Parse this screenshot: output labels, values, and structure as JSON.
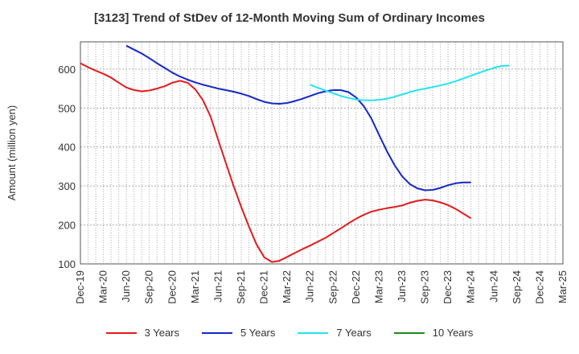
{
  "chart_data": {
    "type": "line",
    "title": "[3123]  Trend of StDev of 12-Month Moving Sum of Ordinary Incomes",
    "xlabel": "",
    "ylabel": "Amount (million yen)",
    "ylim": [
      100,
      670
    ],
    "yticks": [
      100,
      200,
      300,
      400,
      500,
      600
    ],
    "x_tick_labels": [
      "Dec-19",
      "Mar-20",
      "Jun-20",
      "Sep-20",
      "Dec-20",
      "Mar-21",
      "Jun-21",
      "Sep-21",
      "Dec-21",
      "Mar-22",
      "Jun-22",
      "Sep-22",
      "Dec-22",
      "Mar-23",
      "Jun-23",
      "Sep-23",
      "Dec-23",
      "Mar-24",
      "Jun-24",
      "Sep-24",
      "Dec-24",
      "Mar-25"
    ],
    "x_unit": "month index from Dec-19",
    "grid": true,
    "legend_position": "bottom",
    "series": [
      {
        "name": "3 Years",
        "color": "#e31a1c",
        "points": [
          [
            0,
            615
          ],
          [
            1,
            605
          ],
          [
            2,
            596
          ],
          [
            3,
            588
          ],
          [
            4,
            578
          ],
          [
            5,
            565
          ],
          [
            6,
            553
          ],
          [
            7,
            546
          ],
          [
            8,
            543
          ],
          [
            9,
            545
          ],
          [
            10,
            550
          ],
          [
            11,
            556
          ],
          [
            12,
            565
          ],
          [
            13,
            570
          ],
          [
            14,
            565
          ],
          [
            15,
            548
          ],
          [
            16,
            520
          ],
          [
            17,
            478
          ],
          [
            18,
            418
          ],
          [
            19,
            358
          ],
          [
            20,
            300
          ],
          [
            21,
            246
          ],
          [
            22,
            196
          ],
          [
            23,
            150
          ],
          [
            24,
            117
          ],
          [
            25,
            105
          ],
          [
            26,
            108
          ],
          [
            27,
            118
          ],
          [
            28,
            128
          ],
          [
            29,
            138
          ],
          [
            30,
            147
          ],
          [
            31,
            157
          ],
          [
            32,
            167
          ],
          [
            33,
            179
          ],
          [
            34,
            191
          ],
          [
            35,
            204
          ],
          [
            36,
            216
          ],
          [
            37,
            226
          ],
          [
            38,
            234
          ],
          [
            39,
            239
          ],
          [
            40,
            243
          ],
          [
            41,
            246
          ],
          [
            42,
            250
          ],
          [
            43,
            257
          ],
          [
            44,
            262
          ],
          [
            45,
            265
          ],
          [
            46,
            263
          ],
          [
            47,
            258
          ],
          [
            48,
            251
          ],
          [
            49,
            241
          ],
          [
            50,
            229
          ],
          [
            51,
            217
          ]
        ]
      },
      {
        "name": "5 Years",
        "color": "#1428c8",
        "points": [
          [
            6,
            660
          ],
          [
            7,
            650
          ],
          [
            8,
            640
          ],
          [
            9,
            628
          ],
          [
            10,
            615
          ],
          [
            11,
            603
          ],
          [
            12,
            591
          ],
          [
            13,
            581
          ],
          [
            14,
            573
          ],
          [
            15,
            566
          ],
          [
            16,
            560
          ],
          [
            17,
            555
          ],
          [
            18,
            550
          ],
          [
            19,
            546
          ],
          [
            20,
            542
          ],
          [
            21,
            537
          ],
          [
            22,
            531
          ],
          [
            23,
            523
          ],
          [
            24,
            516
          ],
          [
            25,
            512
          ],
          [
            26,
            511
          ],
          [
            27,
            513
          ],
          [
            28,
            518
          ],
          [
            29,
            524
          ],
          [
            30,
            531
          ],
          [
            31,
            538
          ],
          [
            32,
            543
          ],
          [
            33,
            546
          ],
          [
            34,
            546
          ],
          [
            35,
            541
          ],
          [
            36,
            527
          ],
          [
            37,
            505
          ],
          [
            38,
            473
          ],
          [
            39,
            431
          ],
          [
            40,
            390
          ],
          [
            41,
            354
          ],
          [
            42,
            325
          ],
          [
            43,
            305
          ],
          [
            44,
            294
          ],
          [
            45,
            289
          ],
          [
            46,
            290
          ],
          [
            47,
            295
          ],
          [
            48,
            302
          ],
          [
            49,
            307
          ],
          [
            50,
            309
          ],
          [
            51,
            309
          ]
        ]
      },
      {
        "name": "7 Years",
        "color": "#22e4f0",
        "points": [
          [
            30,
            560
          ],
          [
            31,
            552
          ],
          [
            32,
            545
          ],
          [
            33,
            538
          ],
          [
            34,
            531
          ],
          [
            35,
            526
          ],
          [
            36,
            522
          ],
          [
            37,
            520
          ],
          [
            38,
            520
          ],
          [
            39,
            521
          ],
          [
            40,
            524
          ],
          [
            41,
            529
          ],
          [
            42,
            535
          ],
          [
            43,
            541
          ],
          [
            44,
            546
          ],
          [
            45,
            550
          ],
          [
            46,
            554
          ],
          [
            47,
            558
          ],
          [
            48,
            563
          ],
          [
            49,
            569
          ],
          [
            50,
            576
          ],
          [
            51,
            583
          ],
          [
            52,
            590
          ],
          [
            53,
            597
          ],
          [
            54,
            603
          ],
          [
            55,
            608
          ],
          [
            56,
            609
          ]
        ]
      },
      {
        "name": "10 Years",
        "color": "#1a8c1a",
        "points": []
      }
    ]
  }
}
